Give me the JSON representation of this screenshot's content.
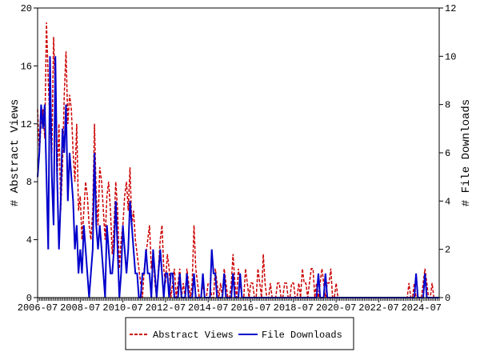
{
  "chart_data": {
    "type": "line",
    "x": [
      "2006-07",
      "2006-08",
      "2006-09",
      "2006-10",
      "2006-11",
      "2006-12",
      "2007-01",
      "2007-02",
      "2007-03",
      "2007-04",
      "2007-05",
      "2007-06",
      "2007-07",
      "2007-08",
      "2007-09",
      "2007-10",
      "2007-11",
      "2007-12",
      "2008-01",
      "2008-02",
      "2008-03",
      "2008-04",
      "2008-05",
      "2008-06",
      "2008-07",
      "2008-08",
      "2008-09",
      "2008-10",
      "2008-11",
      "2008-12",
      "2009-01",
      "2009-02",
      "2009-03",
      "2009-04",
      "2009-05",
      "2009-06",
      "2009-07",
      "2009-08",
      "2009-09",
      "2009-10",
      "2009-11",
      "2009-12",
      "2010-01",
      "2010-02",
      "2010-03",
      "2010-04",
      "2010-05",
      "2010-06",
      "2010-07",
      "2010-08",
      "2010-09",
      "2010-10",
      "2010-11",
      "2010-12",
      "2011-01",
      "2011-02",
      "2011-03",
      "2011-04",
      "2011-05",
      "2011-06",
      "2011-07",
      "2011-08",
      "2011-09",
      "2011-10",
      "2011-11",
      "2011-12",
      "2012-01",
      "2012-02",
      "2012-03",
      "2012-04",
      "2012-05",
      "2012-06",
      "2012-07",
      "2012-08",
      "2012-09",
      "2012-10",
      "2012-11",
      "2012-12",
      "2013-01",
      "2013-02",
      "2013-03",
      "2013-04",
      "2013-05",
      "2013-06",
      "2013-07",
      "2013-08",
      "2013-09",
      "2013-10",
      "2013-11",
      "2013-12",
      "2014-01",
      "2014-02",
      "2014-03",
      "2014-04",
      "2014-05",
      "2014-06",
      "2014-07",
      "2014-08",
      "2014-09",
      "2014-10",
      "2014-11",
      "2014-12",
      "2015-01",
      "2015-02",
      "2015-03",
      "2015-04",
      "2015-05",
      "2015-06",
      "2015-07",
      "2015-08",
      "2015-09",
      "2015-10",
      "2015-11",
      "2015-12",
      "2016-01",
      "2016-02",
      "2016-03",
      "2016-04",
      "2016-05",
      "2016-06",
      "2016-07",
      "2016-08",
      "2016-09",
      "2016-10",
      "2016-11",
      "2016-12",
      "2017-01",
      "2017-02",
      "2017-03",
      "2017-04",
      "2017-05",
      "2017-06",
      "2017-07",
      "2017-08",
      "2017-09",
      "2017-10",
      "2017-11",
      "2017-12",
      "2018-01",
      "2018-02",
      "2018-03",
      "2018-04",
      "2018-05",
      "2018-06",
      "2018-07",
      "2018-08",
      "2018-09",
      "2018-10",
      "2018-11",
      "2018-12",
      "2019-01",
      "2019-02",
      "2019-03",
      "2019-04",
      "2019-05",
      "2019-06",
      "2019-07",
      "2019-08",
      "2019-09",
      "2019-10",
      "2019-11",
      "2019-12",
      "2020-01",
      "2020-02",
      "2020-03",
      "2020-04",
      "2020-05",
      "2020-06",
      "2020-07",
      "2020-08",
      "2020-09",
      "2020-10",
      "2020-11",
      "2020-12",
      "2021-01",
      "2021-02",
      "2021-03",
      "2021-04",
      "2021-05",
      "2021-06",
      "2021-07",
      "2021-08",
      "2021-09",
      "2021-10",
      "2021-11",
      "2021-12",
      "2022-01",
      "2022-02",
      "2022-03",
      "2022-04",
      "2022-05",
      "2022-06",
      "2022-07",
      "2022-08",
      "2022-09",
      "2022-10",
      "2022-11",
      "2022-12",
      "2023-01",
      "2023-02",
      "2023-03",
      "2023-04",
      "2023-05",
      "2023-06",
      "2023-07",
      "2023-08",
      "2023-09",
      "2023-10",
      "2023-11",
      "2023-12",
      "2024-01",
      "2024-02",
      "2024-03",
      "2024-04",
      "2024-05",
      "2024-06",
      "2024-07",
      "2024-08",
      "2024-09",
      "2024-10",
      "2024-11",
      "2024-12",
      "2025-01",
      "2025-02",
      "2025-03",
      "2025-04",
      "2025-05"
    ],
    "xtick_every": 24,
    "ylabel": "# Abstract Views",
    "y2label": "# File Downloads",
    "ylim": [
      0,
      20
    ],
    "yticks": [
      0,
      4,
      8,
      12,
      16,
      20
    ],
    "y2lim": [
      0,
      12
    ],
    "y2ticks": [
      0,
      2,
      4,
      6,
      8,
      10,
      12
    ],
    "series": [
      {
        "name": "Abstract Views",
        "color": "#cc0000",
        "dash": true,
        "values": [
          13,
          10,
          12,
          13,
          11,
          19,
          15,
          12,
          10,
          18,
          14,
          8,
          12,
          6,
          9,
          14,
          17,
          12,
          14,
          13,
          10,
          8,
          12,
          6,
          7,
          4,
          6,
          8,
          7,
          5,
          4,
          6,
          12,
          7,
          5,
          9,
          8,
          6,
          4,
          7,
          8,
          6,
          3,
          5,
          8,
          6,
          2,
          4,
          5,
          7,
          8,
          6,
          9,
          5,
          6,
          4,
          3,
          2,
          1,
          0,
          2,
          3,
          4,
          5,
          2,
          3,
          1,
          0,
          2,
          4,
          5,
          2,
          1,
          3,
          2,
          0,
          1,
          2,
          0,
          1,
          2,
          0,
          1,
          0,
          2,
          1,
          0,
          1,
          5,
          2,
          1,
          0,
          0,
          1,
          0,
          0,
          1,
          1,
          0,
          0,
          2,
          1,
          0,
          1,
          0,
          2,
          1,
          0,
          0,
          1,
          3,
          1,
          0,
          2,
          1,
          0,
          0,
          2,
          1,
          0,
          1,
          1,
          0,
          0,
          2,
          1,
          0,
          3,
          1,
          0,
          0,
          1,
          0,
          0,
          0,
          1,
          1,
          0,
          0,
          1,
          1,
          0,
          0,
          1,
          1,
          0,
          0,
          1,
          0,
          2,
          1,
          1,
          0,
          1,
          2,
          2,
          0,
          1,
          0,
          1,
          2,
          1,
          0,
          1,
          1,
          2,
          0,
          0,
          1,
          0,
          0,
          0,
          0,
          0,
          0,
          0,
          0,
          0,
          0,
          0,
          0,
          0,
          0,
          0,
          0,
          0,
          0,
          0,
          0,
          0,
          0,
          0,
          0,
          0,
          0,
          0,
          0,
          0,
          0,
          0,
          0,
          0,
          0,
          0,
          0,
          0,
          0,
          0,
          0,
          1,
          0,
          0,
          1,
          0,
          0,
          0,
          0,
          1,
          2,
          1,
          0,
          0,
          1,
          0,
          0,
          0,
          0
        ]
      },
      {
        "name": "File Downloads",
        "color": "#0000cc",
        "dash": false,
        "axis": "y2",
        "values": [
          5,
          6,
          8,
          7,
          8,
          5,
          2,
          10,
          5,
          3,
          10,
          5,
          2,
          4,
          7,
          6,
          8,
          4,
          6,
          5,
          4,
          2,
          3,
          1,
          2,
          1,
          3,
          2,
          1,
          0,
          1,
          2,
          6,
          3,
          2,
          3,
          2,
          1,
          0,
          3,
          2,
          1,
          1,
          2,
          4,
          2,
          0,
          1,
          3,
          2,
          1,
          2,
          4,
          3,
          2,
          1,
          1,
          0,
          0,
          1,
          1,
          2,
          1,
          1,
          0,
          2,
          1,
          0,
          1,
          2,
          1,
          0,
          1,
          1,
          0,
          1,
          1,
          0,
          0,
          0,
          1,
          0,
          0,
          0,
          1,
          0,
          0,
          0,
          1,
          0,
          0,
          0,
          0,
          1,
          0,
          0,
          0,
          0,
          2,
          1,
          1,
          0,
          0,
          0,
          0,
          1,
          0,
          0,
          0,
          0,
          1,
          0,
          0,
          0,
          1,
          0,
          0,
          0,
          0,
          0,
          0,
          0,
          0,
          0,
          0,
          0,
          0,
          0,
          0,
          0,
          0,
          0,
          0,
          0,
          0,
          0,
          0,
          0,
          0,
          0,
          0,
          0,
          0,
          0,
          0,
          0,
          0,
          0,
          0,
          0,
          0,
          0,
          0,
          0,
          0,
          0,
          0,
          0,
          1,
          0,
          0,
          0,
          1,
          0,
          0,
          0,
          0,
          0,
          0,
          0,
          0,
          0,
          0,
          0,
          0,
          0,
          0,
          0,
          0,
          0,
          0,
          0,
          0,
          0,
          0,
          0,
          0,
          0,
          0,
          0,
          0,
          0,
          0,
          0,
          0,
          0,
          0,
          0,
          0,
          0,
          0,
          0,
          0,
          0,
          0,
          0,
          0,
          0,
          0,
          0,
          0,
          0,
          0,
          1,
          0,
          0,
          0,
          0,
          1,
          0,
          0,
          0,
          0,
          0,
          0,
          0,
          0
        ]
      }
    ]
  }
}
